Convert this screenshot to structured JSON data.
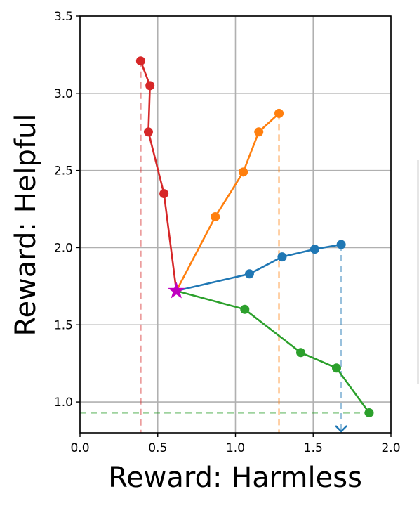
{
  "chart_data": {
    "type": "line",
    "title": "",
    "xlabel": "Reward: Harmless",
    "ylabel": "Reward: Helpful",
    "xlim": [
      0.0,
      2.0
    ],
    "ylim": [
      0.8,
      3.5
    ],
    "xticks": [
      "0.0",
      "0.5",
      "1.0",
      "1.5",
      "2.0"
    ],
    "yticks": [
      "1.0",
      "1.5",
      "2.0",
      "2.5",
      "3.0",
      "3.5"
    ],
    "grid": true,
    "origin": {
      "x": 0.62,
      "y": 1.72,
      "marker": "star",
      "color": "#bf00bf"
    },
    "series": [
      {
        "color": "#d62728",
        "x": [
          0.54,
          0.44,
          0.45,
          0.39
        ],
        "y": [
          2.35,
          2.75,
          3.05,
          3.21
        ]
      },
      {
        "color": "#ff7f0e",
        "x": [
          0.87,
          1.05,
          1.15,
          1.28
        ],
        "y": [
          2.2,
          2.49,
          2.75,
          2.87
        ]
      },
      {
        "color": "#1f77b4",
        "x": [
          1.09,
          1.3,
          1.51,
          1.68
        ],
        "y": [
          1.83,
          1.94,
          1.99,
          2.02
        ]
      },
      {
        "color": "#2ca02c",
        "x": [
          1.06,
          1.42,
          1.65,
          1.86
        ],
        "y": [
          1.6,
          1.32,
          1.22,
          0.93
        ]
      }
    ],
    "guides": [
      {
        "orientation": "vertical",
        "value": 0.39,
        "color": "#d62728"
      },
      {
        "orientation": "vertical",
        "value": 1.28,
        "color": "#ff7f0e"
      },
      {
        "orientation": "vertical",
        "value": 1.68,
        "color": "#1f77b4",
        "arrow": true
      },
      {
        "orientation": "horizontal",
        "value": 0.93,
        "color": "#2ca02c"
      }
    ]
  }
}
